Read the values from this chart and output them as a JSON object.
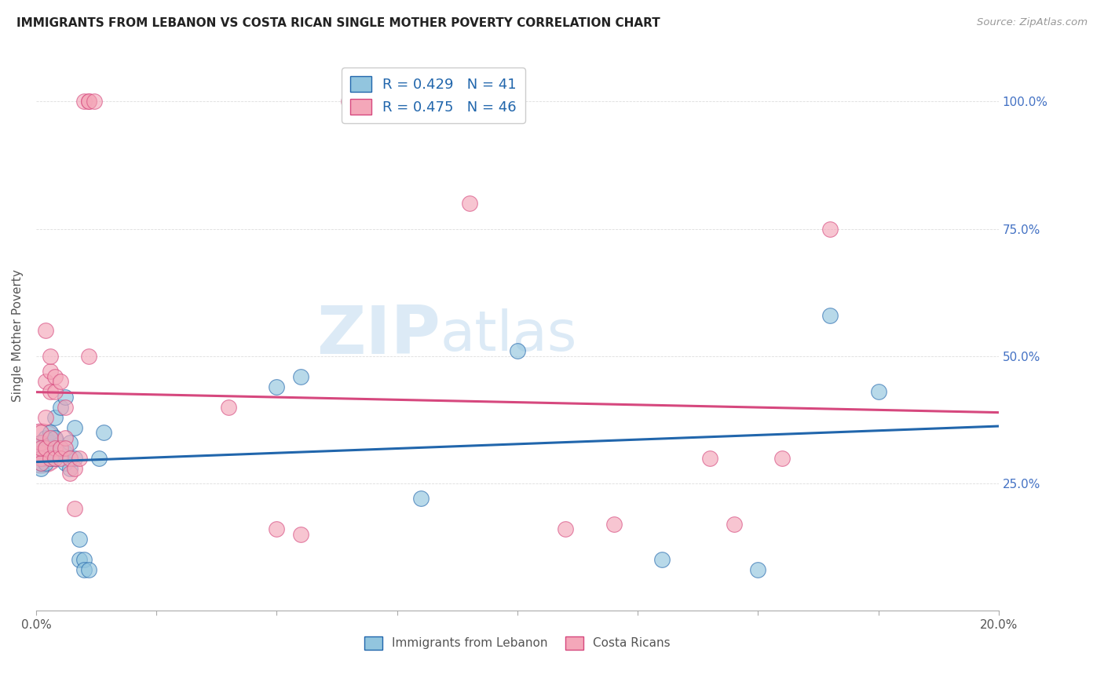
{
  "title": "IMMIGRANTS FROM LEBANON VS COSTA RICAN SINGLE MOTHER POVERTY CORRELATION CHART",
  "source": "Source: ZipAtlas.com",
  "ylabel": "Single Mother Poverty",
  "legend_label1": "Immigrants from Lebanon",
  "legend_label2": "Costa Ricans",
  "r1": 0.429,
  "n1": 41,
  "r2": 0.475,
  "n2": 46,
  "color_blue": "#92c5de",
  "color_pink": "#f4a7b9",
  "line_color_blue": "#2166ac",
  "line_color_pink": "#d6487e",
  "ytick_color": "#4472c4",
  "blue_x": [
    0.001,
    0.001,
    0.001,
    0.001,
    0.001,
    0.002,
    0.002,
    0.002,
    0.002,
    0.002,
    0.003,
    0.003,
    0.003,
    0.003,
    0.004,
    0.004,
    0.004,
    0.005,
    0.005,
    0.006,
    0.006,
    0.006,
    0.007,
    0.007,
    0.008,
    0.008,
    0.009,
    0.009,
    0.01,
    0.01,
    0.011,
    0.013,
    0.014,
    0.05,
    0.055,
    0.08,
    0.1,
    0.13,
    0.15,
    0.165,
    0.175
  ],
  "blue_y": [
    0.31,
    0.33,
    0.3,
    0.29,
    0.28,
    0.3,
    0.32,
    0.34,
    0.31,
    0.29,
    0.33,
    0.35,
    0.31,
    0.3,
    0.38,
    0.34,
    0.3,
    0.4,
    0.32,
    0.42,
    0.31,
    0.29,
    0.33,
    0.28,
    0.36,
    0.3,
    0.14,
    0.1,
    0.1,
    0.08,
    0.08,
    0.3,
    0.35,
    0.44,
    0.46,
    0.22,
    0.51,
    0.1,
    0.08,
    0.58,
    0.43
  ],
  "pink_x": [
    0.001,
    0.001,
    0.001,
    0.001,
    0.001,
    0.001,
    0.002,
    0.002,
    0.002,
    0.002,
    0.003,
    0.003,
    0.003,
    0.003,
    0.003,
    0.004,
    0.004,
    0.004,
    0.004,
    0.005,
    0.005,
    0.005,
    0.006,
    0.006,
    0.006,
    0.007,
    0.007,
    0.008,
    0.008,
    0.009,
    0.01,
    0.011,
    0.011,
    0.011,
    0.012,
    0.04,
    0.05,
    0.055,
    0.065,
    0.09,
    0.11,
    0.12,
    0.14,
    0.145,
    0.155,
    0.165
  ],
  "pink_y": [
    0.31,
    0.33,
    0.3,
    0.35,
    0.29,
    0.32,
    0.45,
    0.38,
    0.55,
    0.32,
    0.34,
    0.43,
    0.47,
    0.3,
    0.5,
    0.32,
    0.43,
    0.46,
    0.3,
    0.32,
    0.45,
    0.3,
    0.34,
    0.4,
    0.32,
    0.27,
    0.3,
    0.2,
    0.28,
    0.3,
    1.0,
    1.0,
    1.0,
    0.5,
    1.0,
    0.4,
    0.16,
    0.15,
    1.0,
    0.8,
    0.16,
    0.17,
    0.3,
    0.17,
    0.3,
    0.75
  ],
  "pink_large_x": [
    0.001
  ],
  "pink_large_y": [
    0.32
  ],
  "pink_large_s": [
    2000
  ]
}
